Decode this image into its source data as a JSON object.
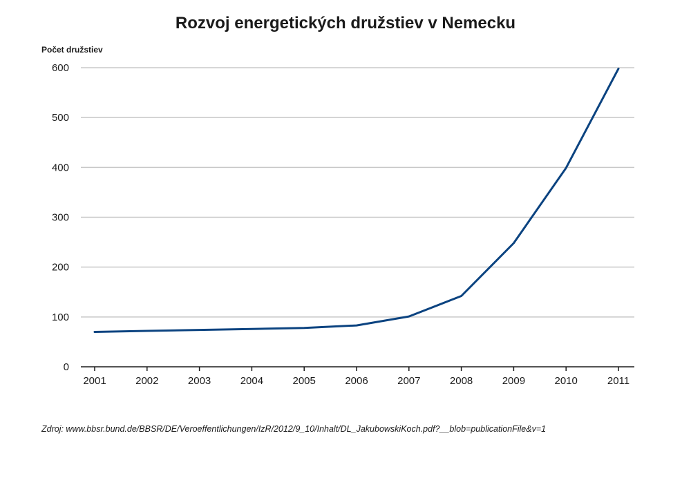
{
  "chart_data": {
    "type": "line",
    "title": "Rozvoj energetických družstiev v Nemecku",
    "ylabel": "Počet družstiev",
    "xlabel": "",
    "x": [
      "2001",
      "2002",
      "2003",
      "2004",
      "2005",
      "2006",
      "2007",
      "2008",
      "2009",
      "2010",
      "2011"
    ],
    "series": [
      {
        "values": [
          70,
          72,
          74,
          76,
          78,
          83,
          101,
          142,
          248,
          399,
          598
        ]
      }
    ],
    "ylim": [
      0,
      600
    ],
    "yticks": [
      "0",
      "100",
      "200",
      "300",
      "400",
      "500",
      "600"
    ],
    "grid": "horizontal",
    "legend": "none",
    "line_color": "#0b4380",
    "grid_color": "#c8c8c8"
  },
  "source_note": "Zdroj: www.bbsr.bund.de/BBSR/DE/Veroeffentlichungen/IzR/2012/9_10/Inhalt/DL_JakubowskiKoch.pdf?__blob=publicationFile&v=1"
}
